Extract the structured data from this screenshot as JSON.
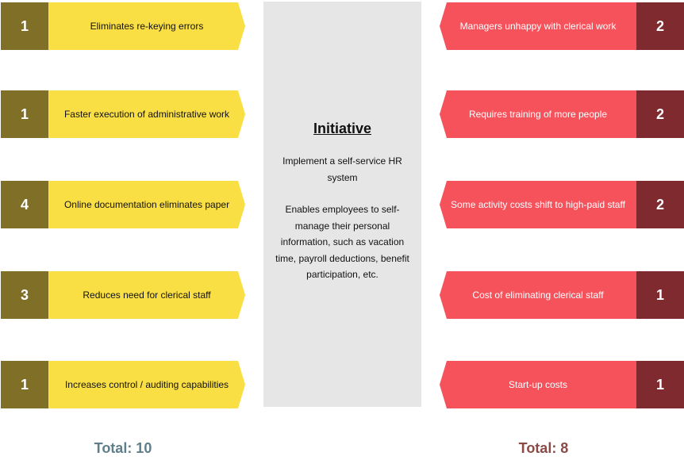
{
  "colors": {
    "driving_number": "#7f6f27",
    "driving_arrow": "#fadf44",
    "restraining_arrow": "#f5525c",
    "restraining_number": "#7e2a2f",
    "center": "#e6e6e6",
    "total_left": "#5f7d8a",
    "total_right": "#8b4a46"
  },
  "driving_forces": [
    {
      "score": "1",
      "label": "Eliminates re-keying errors"
    },
    {
      "score": "1",
      "label": "Faster execution of administrative work"
    },
    {
      "score": "4",
      "label": "Online documentation eliminates paper"
    },
    {
      "score": "3",
      "label": "Reduces need for clerical staff"
    },
    {
      "score": "1",
      "label": "Increases control / auditing capabilities"
    }
  ],
  "restraining_forces": [
    {
      "score": "2",
      "label": "Managers unhappy with clerical work"
    },
    {
      "score": "2",
      "label": "Requires training of more people"
    },
    {
      "score": "2",
      "label": "Some activity costs shift to high-paid staff"
    },
    {
      "score": "1",
      "label": "Cost of eliminating clerical staff"
    },
    {
      "score": "1",
      "label": "Start-up costs"
    }
  ],
  "initiative": {
    "title": "Initiative",
    "summary": "Implement a self-service HR system",
    "description": "Enables employees to self-manage their personal information, such as vacation time, payroll deductions, benefit participation, etc."
  },
  "totals": {
    "left": "Total: 10",
    "right": "Total: 8"
  }
}
